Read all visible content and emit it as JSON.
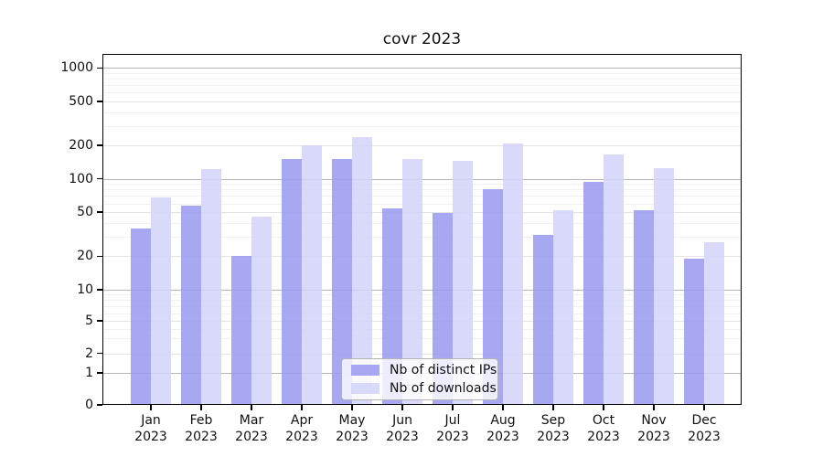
{
  "title": "covr 2023",
  "colors": {
    "distinct_ips": "#9898f0",
    "downloads": "#d2d2f8",
    "axis": "#000000",
    "grid_decade": "#b5b5b5",
    "grid_mid": "#e4e4e4",
    "grid_minor": "#f1f1f1"
  },
  "legend": {
    "items": [
      {
        "label": "Nb of distinct IPs",
        "color_key": "distinct_ips"
      },
      {
        "label": "Nb of downloads",
        "color_key": "downloads"
      }
    ]
  },
  "y_axis": {
    "major_ticks": [
      {
        "value": 0,
        "label": "0"
      },
      {
        "value": 1,
        "label": "1"
      },
      {
        "value": 2,
        "label": "2"
      },
      {
        "value": 5,
        "label": "5"
      },
      {
        "value": 10,
        "label": "10"
      },
      {
        "value": 20,
        "label": "20"
      },
      {
        "value": 50,
        "label": "50"
      },
      {
        "value": 100,
        "label": "100"
      },
      {
        "value": 200,
        "label": "200"
      },
      {
        "value": 500,
        "label": "500"
      },
      {
        "value": 1000,
        "label": "1000"
      }
    ],
    "minor_ticks": [
      3,
      4,
      6,
      7,
      8,
      9,
      30,
      40,
      60,
      70,
      80,
      90,
      300,
      400,
      600,
      700,
      800,
      900
    ]
  },
  "x_axis": {
    "months": [
      {
        "month": "Jan",
        "year": "2023"
      },
      {
        "month": "Feb",
        "year": "2023"
      },
      {
        "month": "Mar",
        "year": "2023"
      },
      {
        "month": "Apr",
        "year": "2023"
      },
      {
        "month": "May",
        "year": "2023"
      },
      {
        "month": "Jun",
        "year": "2023"
      },
      {
        "month": "Jul",
        "year": "2023"
      },
      {
        "month": "Aug",
        "year": "2023"
      },
      {
        "month": "Sep",
        "year": "2023"
      },
      {
        "month": "Oct",
        "year": "2023"
      },
      {
        "month": "Nov",
        "year": "2023"
      },
      {
        "month": "Dec",
        "year": "2023"
      }
    ]
  },
  "chart_data": {
    "type": "bar",
    "title": "covr 2023",
    "xlabel": "",
    "ylabel": "",
    "yscale": "symlog",
    "ylim": [
      0,
      1340
    ],
    "yticks": [
      0,
      1,
      2,
      5,
      10,
      20,
      50,
      100,
      200,
      500,
      1000
    ],
    "grid": true,
    "legend_position": "lower center",
    "categories": [
      "Jan 2023",
      "Feb 2023",
      "Mar 2023",
      "Apr 2023",
      "May 2023",
      "Jun 2023",
      "Jul 2023",
      "Aug 2023",
      "Sep 2023",
      "Oct 2023",
      "Nov 2023",
      "Dec 2023"
    ],
    "series": [
      {
        "name": "Nb of distinct IPs",
        "values": [
          36,
          57,
          20,
          150,
          152,
          54,
          49,
          80,
          31,
          94,
          52,
          19
        ]
      },
      {
        "name": "Nb of downloads",
        "values": [
          68,
          123,
          46,
          200,
          238,
          150,
          145,
          210,
          52,
          166,
          124,
          27
        ]
      }
    ]
  }
}
